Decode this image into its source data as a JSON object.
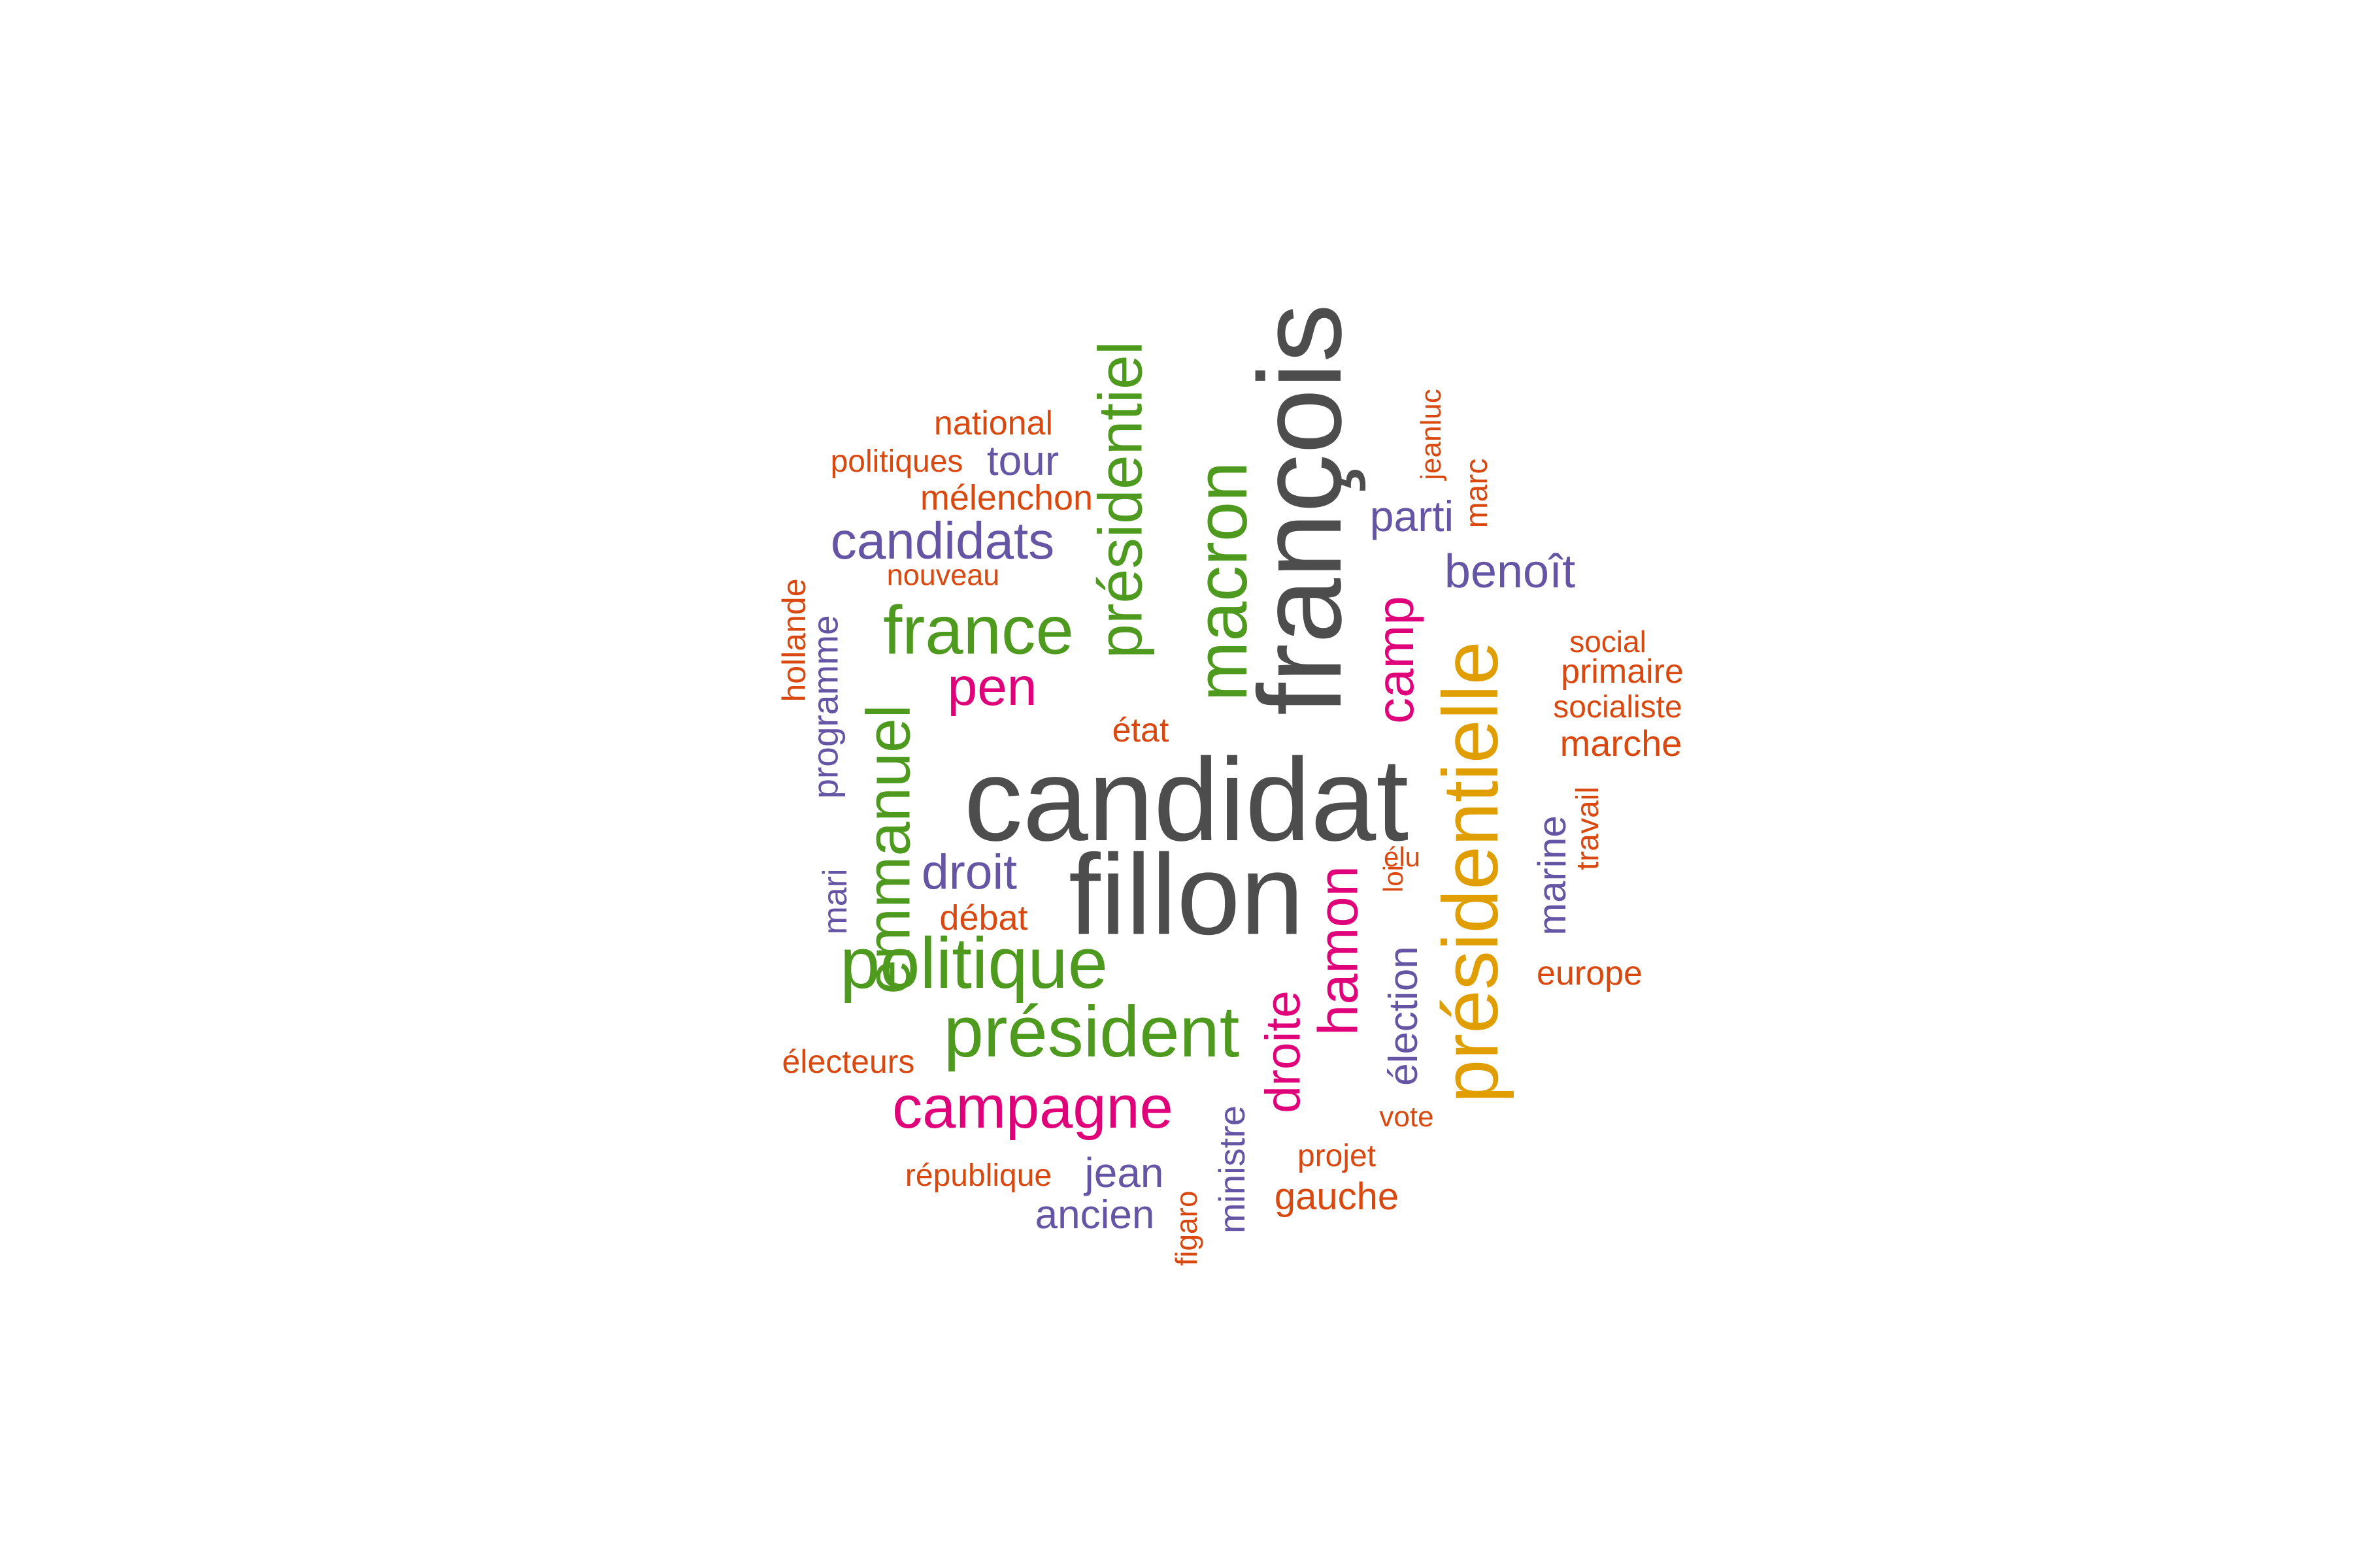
{
  "palette": {
    "dark_gray": "#4d4d4d",
    "green": "#4e9a1e",
    "gold": "#e09e00",
    "magenta": "#e0007a",
    "purple": "#6555a4",
    "orange": "#d9480f"
  },
  "words": [
    {
      "text": "candidat",
      "color": "dark_gray",
      "rank": 1
    },
    {
      "text": "françois",
      "color": "dark_gray",
      "rank": 2
    },
    {
      "text": "fillon",
      "color": "dark_gray",
      "rank": 3
    },
    {
      "text": "présidentielle",
      "color": "gold",
      "rank": 4
    },
    {
      "text": "présidentiel",
      "color": "green",
      "rank": 5
    },
    {
      "text": "macron",
      "color": "green",
      "rank": 6
    },
    {
      "text": "emmanuel",
      "color": "green",
      "rank": 7
    },
    {
      "text": "politique",
      "color": "green",
      "rank": 8
    },
    {
      "text": "président",
      "color": "green",
      "rank": 9
    },
    {
      "text": "france",
      "color": "green",
      "rank": 10
    },
    {
      "text": "campagne",
      "color": "magenta",
      "rank": 11
    },
    {
      "text": "hamon",
      "color": "magenta",
      "rank": 12
    },
    {
      "text": "camp",
      "color": "magenta",
      "rank": 13
    },
    {
      "text": "droite",
      "color": "magenta",
      "rank": 14
    },
    {
      "text": "pen",
      "color": "magenta",
      "rank": 15
    },
    {
      "text": "candidats",
      "color": "purple",
      "rank": 16
    },
    {
      "text": "droit",
      "color": "purple",
      "rank": 17
    },
    {
      "text": "benoît",
      "color": "purple",
      "rank": 18
    },
    {
      "text": "marine",
      "color": "purple",
      "rank": 19
    },
    {
      "text": "élection",
      "color": "purple",
      "rank": 20
    },
    {
      "text": "programme",
      "color": "purple",
      "rank": 21
    },
    {
      "text": "ministre",
      "color": "purple",
      "rank": 22
    },
    {
      "text": "tour",
      "color": "purple",
      "rank": 23
    },
    {
      "text": "parti",
      "color": "purple",
      "rank": 24
    },
    {
      "text": "jean",
      "color": "purple",
      "rank": 25
    },
    {
      "text": "ancien",
      "color": "purple",
      "rank": 26
    },
    {
      "text": "mari",
      "color": "purple",
      "rank": 27
    },
    {
      "text": "mélenchon",
      "color": "orange",
      "rank": 28
    },
    {
      "text": "national",
      "color": "orange",
      "rank": 29
    },
    {
      "text": "politiques",
      "color": "orange",
      "rank": 30
    },
    {
      "text": "nouveau",
      "color": "orange",
      "rank": 31
    },
    {
      "text": "hollande",
      "color": "orange",
      "rank": 32
    },
    {
      "text": "état",
      "color": "orange",
      "rank": 33
    },
    {
      "text": "débat",
      "color": "orange",
      "rank": 34
    },
    {
      "text": "électeurs",
      "color": "orange",
      "rank": 35
    },
    {
      "text": "république",
      "color": "orange",
      "rank": 36
    },
    {
      "text": "figaro",
      "color": "orange",
      "rank": 37
    },
    {
      "text": "projet",
      "color": "orange",
      "rank": 38
    },
    {
      "text": "gauche",
      "color": "orange",
      "rank": 39
    },
    {
      "text": "vote",
      "color": "orange",
      "rank": 40
    },
    {
      "text": "loi",
      "color": "orange",
      "rank": 41
    },
    {
      "text": "élu",
      "color": "orange",
      "rank": 42
    },
    {
      "text": "jeanluc",
      "color": "orange",
      "rank": 43
    },
    {
      "text": "marc",
      "color": "orange",
      "rank": 44
    },
    {
      "text": "social",
      "color": "orange",
      "rank": 45
    },
    {
      "text": "primaire",
      "color": "orange",
      "rank": 46
    },
    {
      "text": "socialiste",
      "color": "orange",
      "rank": 47
    },
    {
      "text": "marche",
      "color": "orange",
      "rank": 48
    },
    {
      "text": "travail",
      "color": "orange",
      "rank": 49
    },
    {
      "text": "europe",
      "color": "orange",
      "rank": 50
    }
  ]
}
